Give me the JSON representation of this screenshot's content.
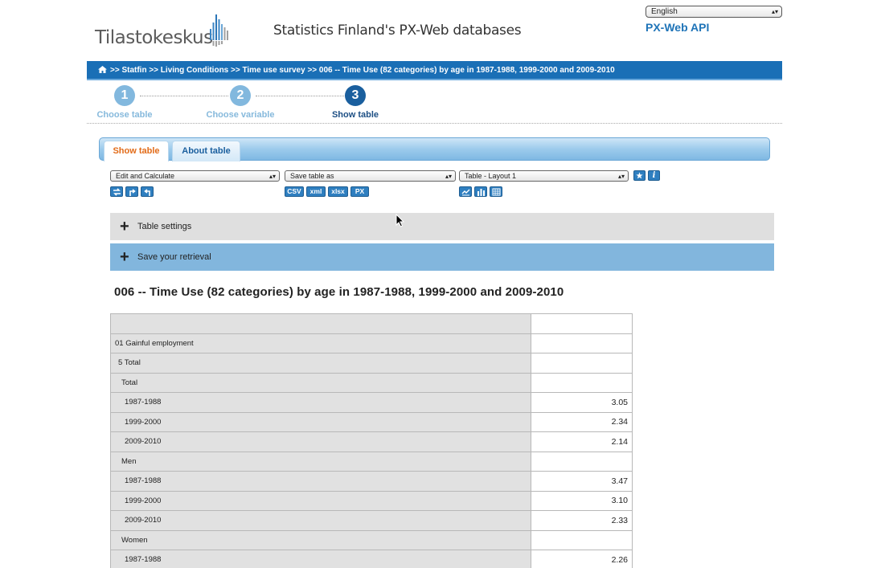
{
  "header": {
    "logo_text": "Tilastokeskus",
    "site_title": "Statistics Finland's PX-Web databases",
    "language_selected": "English",
    "api_link": "PX-Web API"
  },
  "breadcrumb": {
    "path": ">> Statfin >> Living Conditions >> Time use survey >> 006 -- Time Use (82 categories) by age in 1987-1988, 1999-2000 and 2009-2010"
  },
  "steps": [
    {
      "number": "1",
      "label": "Choose table"
    },
    {
      "number": "2",
      "label": "Choose variable"
    },
    {
      "number": "3",
      "label": "Show table"
    }
  ],
  "tabs": {
    "show_table": "Show table",
    "about_table": "About table"
  },
  "toolbar": {
    "edit_dropdown": "Edit and Calculate",
    "save_dropdown": "Save table as",
    "layout_dropdown": "Table - Layout 1",
    "formats": [
      "CSV",
      "xml",
      "xlsx",
      "PX"
    ]
  },
  "accordions": {
    "table_settings": "Table settings",
    "save_retrieval": "Save your retrieval"
  },
  "table": {
    "title": "006 -- Time Use (82 categories) by age in 1987-1988, 1999-2000 and 2009-2010",
    "rows": [
      {
        "label": "",
        "value": "",
        "level": 1
      },
      {
        "label": "01 Gainful employment",
        "value": "",
        "level": 1
      },
      {
        "label": "5 Total",
        "value": "",
        "level": 2
      },
      {
        "label": "Total",
        "value": "",
        "level": 3
      },
      {
        "label": "1987-1988",
        "value": "3.05",
        "level": 4
      },
      {
        "label": "1999-2000",
        "value": "2.34",
        "level": 4
      },
      {
        "label": "2009-2010",
        "value": "2.14",
        "level": 4
      },
      {
        "label": "Men",
        "value": "",
        "level": 3
      },
      {
        "label": "1987-1988",
        "value": "3.47",
        "level": 4
      },
      {
        "label": "1999-2000",
        "value": "3.10",
        "level": 4
      },
      {
        "label": "2009-2010",
        "value": "2.33",
        "level": 4
      },
      {
        "label": "Women",
        "value": "",
        "level": 3
      },
      {
        "label": "1987-1988",
        "value": "2.26",
        "level": 4
      }
    ]
  },
  "colors": {
    "brand_blue": "#1a6fb6",
    "active_tab_text": "#e26b18",
    "step_active": "#1a5f9e",
    "step_inactive": "#82b8de"
  },
  "icons": {
    "home": "home-icon",
    "pivot_manual": "pivot-manual-icon",
    "pivot_clockwise": "pivot-clockwise-icon",
    "pivot_counterclockwise": "pivot-counterclockwise-icon",
    "star": "star-icon",
    "info": "info-icon",
    "line_chart": "line-chart-icon",
    "bar_chart": "bar-chart-icon",
    "table": "table-icon",
    "plus": "plus-icon",
    "cursor": "mouse-cursor-icon"
  }
}
